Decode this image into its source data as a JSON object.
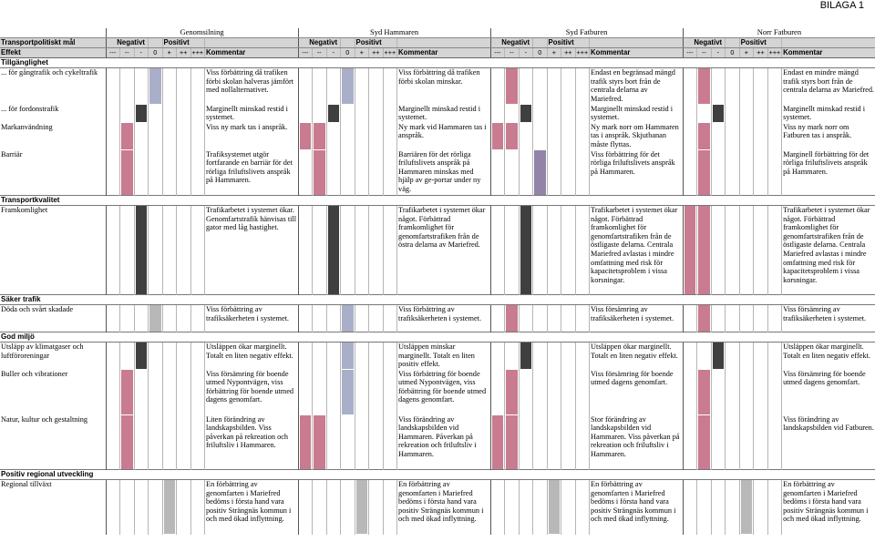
{
  "bilaga": "BILAGA 1",
  "regions": [
    "Genomsilning",
    "Syd Hammaren",
    "Syd Fatburen",
    "Norr Fatburen"
  ],
  "label_header": "Transportpolitiskt mål",
  "col_headers": {
    "neg": "Negativt",
    "pos": "Positivt",
    "kom": "Kommentar"
  },
  "effekt_label": "Effekt",
  "scale": [
    "---",
    "--",
    "-",
    "0",
    "+",
    "++",
    "+++"
  ],
  "colors": {
    "red": "#c97b90",
    "blue": "#a9afc8",
    "black": "#3f3f3f",
    "gray": "#b8b8b8",
    "purple": "#9283a8"
  },
  "rows": [
    {
      "type": "section",
      "label": "Tillgänglighet"
    },
    {
      "type": "data",
      "label": "... för gångtrafik och cykeltrafik",
      "h": 40,
      "cells": [
        {
          "m": 3,
          "c": "blue",
          "t": "Viss förbättring då trafiken förbi skolan halveras jämfört med nollalternativet."
        },
        {
          "m": 3,
          "c": "blue",
          "t": "Viss förbättring då trafiken förbi skolan minskar."
        },
        {
          "m": 1,
          "c": "red",
          "t": "Endast en begränsad mängd trafik styrs bort från de centrala delarna av Mariefred."
        },
        {
          "m": 1,
          "c": "red",
          "t": "Endast en mindre mängd trafik styrs bort från de centrala delarna av Mariefred."
        }
      ]
    },
    {
      "type": "data",
      "label": "... för fordonstrafik",
      "h": 20,
      "cells": [
        {
          "m": 2,
          "c": "black",
          "t": "Marginellt minskad restid i systemet."
        },
        {
          "m": 2,
          "c": "black",
          "t": "Marginellt minskad restid i systemet."
        },
        {
          "m": 2,
          "c": "black",
          "t": "Marginellt minskad restid i systemet."
        },
        {
          "m": 2,
          "c": "black",
          "t": "Marginellt minskad restid i systemet."
        }
      ]
    },
    {
      "type": "data",
      "label": "Markanvändning",
      "h": 30,
      "cells": [
        {
          "m": 1,
          "c": "red",
          "t": "Viss ny mark tas i anspråk."
        },
        {
          "m": [
            0,
            1
          ],
          "c": "red",
          "t": "Ny mark vid Hammaren tas i anspråk."
        },
        {
          "m": [
            0,
            1
          ],
          "c": "red",
          "t": "Ny mark norr om Hammaren tas i anspråk. Skjutbanan måste flyttas."
        },
        {
          "m": 1,
          "c": "red",
          "t": "Viss ny mark norr om Fatburen tas i anspråk."
        }
      ]
    },
    {
      "type": "data",
      "label": "Barriär",
      "h": 50,
      "cells": [
        {
          "m": 1,
          "c": "red",
          "t": "Trafiksystemet utgör fortfarande en barriär för det rörliga friluftslivets anspråk på Hammaren."
        },
        {
          "m": 1,
          "c": "red",
          "t": "Barriären för det rörliga friluftslivets anspråk på Hammaren minskas med hjälp av ge-portar under ny väg."
        },
        {
          "m": 3,
          "c": "purple",
          "t": "Viss förbättring för det rörliga friluftslivets anspråk på Hammaren."
        },
        {
          "m": 1,
          "c": "red",
          "t": "Marginell förbättring för det rörliga friluftslivets anspråk på Hammaren."
        }
      ]
    },
    {
      "type": "section",
      "label": "Transportkvalitet"
    },
    {
      "type": "data",
      "label": "Framkomlighet",
      "h": 98,
      "cells": [
        {
          "m": 2,
          "c": "black",
          "t": "Trafikarbetet i systemet ökar. Genomfartstrafik hänvisas till gator med låg hastighet."
        },
        {
          "m": 2,
          "c": "black",
          "t": "Trafikarbetet i systemet ökar något. Förbättrad framkomlighet för genomfartstrafiken från de östra delarna av Mariefred."
        },
        {
          "m": 2,
          "c": "black",
          "t": "Trafikarbetet i systemet ökar något. Förbättrad framkomlighet för genomfartstrafiken från de östligaste delarna. Centrala Mariefred avlastas i mindre omfattning med risk för kapacitetsproblem i vissa korsningar."
        },
        {
          "m": [
            0,
            1
          ],
          "c": "red",
          "t": "Trafikarbetet i systemet ökar något. Förbättrad framkomlighet för genomfartstrafiken från de östligaste delarna. Centrala Mariefred avlastas i mindre omfattning med risk för kapacitetsproblem i vissa korsningar."
        }
      ]
    },
    {
      "type": "section",
      "label": "Säker trafik"
    },
    {
      "type": "data",
      "label": "Döda och svårt skadade",
      "h": 30,
      "cells": [
        {
          "m": 3,
          "c": "gray",
          "t": "Viss förbättring av trafiksäkerheten i systemet."
        },
        {
          "m": 3,
          "c": "blue",
          "t": "Viss förbättring av trafiksäkerheten i systemet."
        },
        {
          "m": 1,
          "c": "red",
          "t": "Viss försämring av trafiksäkerheten i systemet."
        },
        {
          "m": 1,
          "c": "red",
          "t": "Viss försämring av trafiksäkerheten i systemet."
        }
      ]
    },
    {
      "type": "section",
      "label": "God miljö"
    },
    {
      "type": "data",
      "label": "Utsläpp av klimatgaser och luftföroreningar",
      "h": 30,
      "cells": [
        {
          "m": 2,
          "c": "black",
          "t": "Utsläppen ökar marginellt. Totalt en liten negativ effekt."
        },
        {
          "m": 3,
          "c": "blue",
          "t": "Utsläppen minskar marginellt. Totalt en liten positiv effekt."
        },
        {
          "m": 2,
          "c": "black",
          "t": "Utsläppen ökar marginellt. Totalt en liten negativ effekt."
        },
        {
          "m": 2,
          "c": "black",
          "t": "Utsläppen ökar marginellt. Totalt en liten negativ effekt."
        }
      ]
    },
    {
      "type": "data",
      "label": "Buller och vibrationer",
      "h": 50,
      "cells": [
        {
          "m": 1,
          "c": "red",
          "t": "Viss försämring för boende utmed Nypontvägen, viss förbättring för boende utmed dagens genomfart."
        },
        {
          "m": 3,
          "c": "blue",
          "t": "Viss förbättring för boende utmed Nypontvägen, viss förbättring för boende utmed dagens genomfart."
        },
        {
          "m": 1,
          "c": "red",
          "t": "Viss försämring för boende utmed dagens genomfart."
        },
        {
          "m": 1,
          "c": "red",
          "t": "Viss försämring för boende utmed dagens genomfart."
        }
      ]
    },
    {
      "type": "data",
      "label": "Natur, kultur och gestaltning",
      "h": 60,
      "cells": [
        {
          "m": 1,
          "c": "red",
          "t": "Liten förändring av landskapsbilden. Viss påverkan på rekreation och friluftsliv i Hammaren."
        },
        {
          "m": [
            0,
            1
          ],
          "c": "red",
          "t": "Viss förändring av landskapsbilden vid Hammaren. Påverkan på rekreation och friluftsliv i Hammaren."
        },
        {
          "m": [
            0,
            1
          ],
          "c": "red",
          "t": "Stor förändring av landskapsbilden vid Hammaren. Viss påverkan på rekreation och friluftsliv i Hammaren."
        },
        {
          "m": 1,
          "c": "red",
          "t": "Viss förändring av landskapsbilden vid Fatburen."
        }
      ]
    },
    {
      "type": "section",
      "label": "Positiv regional utveckling"
    },
    {
      "type": "data",
      "label": "Regional tillväxt",
      "h": 60,
      "cells": [
        {
          "m": 4,
          "c": "gray",
          "t": "En förbättring av genomfarten i Mariefred bedöms i första hand vara positiv Strängnäs kommun i och med ökad inflyttning."
        },
        {
          "m": 4,
          "c": "gray",
          "t": "En förbättring av genomfarten i Mariefred bedöms i första hand vara positiv Strängnäs kommun i och med ökad inflyttning."
        },
        {
          "m": 4,
          "c": "gray",
          "t": "En förbättring av genomfarten i Mariefred bedöms i första hand vara positiv Strängnäs kommun i och med ökad inflyttning."
        },
        {
          "m": 4,
          "c": "gray",
          "t": "En förbättring av genomfarten i Mariefred bedöms i första hand vara positiv Strängnäs kommun i och med ökad inflyttning."
        }
      ]
    }
  ]
}
